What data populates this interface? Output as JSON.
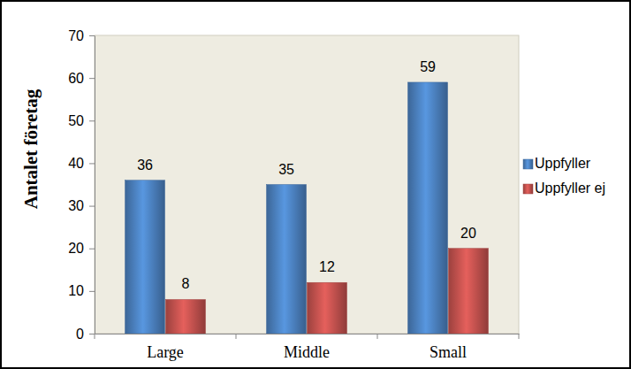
{
  "chart_data": {
    "type": "bar",
    "categories": [
      "Large",
      "Middle",
      "Small"
    ],
    "series": [
      {
        "name": "Uppfyller",
        "color": "#4a7ebb",
        "values": [
          36,
          35,
          59
        ]
      },
      {
        "name": "Uppfyller ej",
        "color": "#c0504d",
        "values": [
          8,
          12,
          20
        ]
      }
    ],
    "y_label": "Antalet företag",
    "ylim": [
      0,
      70
    ],
    "yticks": [
      0,
      10,
      20,
      30,
      40,
      50,
      60,
      70
    ],
    "grid": false,
    "data_labels": true,
    "legend": "right"
  }
}
